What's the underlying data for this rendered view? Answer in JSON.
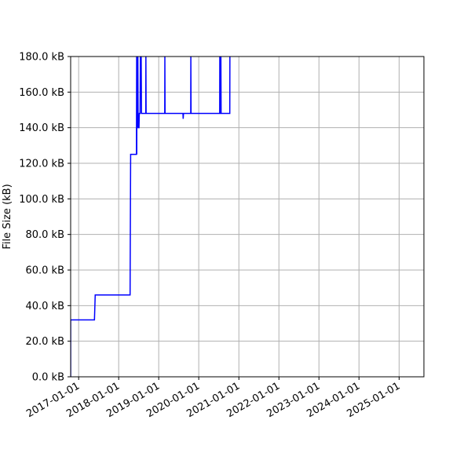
{
  "chart_data": {
    "type": "line",
    "title": "",
    "xlabel": "",
    "ylabel": "File Size (kB)",
    "grid": true,
    "legend": "none",
    "line_color": "#0000ff",
    "xlim": [
      "2016-10-20",
      "2025-08-15"
    ],
    "ylim": [
      0,
      180
    ],
    "x_ticks": [
      "2017-01-01",
      "2018-01-01",
      "2019-01-01",
      "2020-01-01",
      "2021-01-01",
      "2022-01-01",
      "2023-01-01",
      "2024-01-01",
      "2025-01-01"
    ],
    "y_ticks": [
      0,
      20,
      40,
      60,
      80,
      100,
      120,
      140,
      160,
      180
    ],
    "y_tick_labels": [
      "0.0 kB",
      "20.0 kB",
      "40.0 kB",
      "60.0 kB",
      "80.0 kB",
      "100.0 kB",
      "120.0 kB",
      "140.0 kB",
      "160.0 kB",
      "180.0 kB"
    ],
    "series": [
      {
        "x": [
          "2016-10-20",
          "2016-10-20",
          "2017-05-25",
          "2017-06-01",
          "2018-04-15",
          "2018-04-20",
          "2018-06-12",
          "2018-06-14",
          "2018-06-15",
          "2018-06-16",
          "2018-06-20",
          "2018-06-22",
          "2018-06-25",
          "2018-06-27",
          "2018-07-05",
          "2018-07-08",
          "2018-07-15",
          "2018-07-18",
          "2018-07-25",
          "2018-07-28",
          "2018-09-05",
          "2018-09-06",
          "2018-09-08",
          "2019-02-25",
          "2019-02-26",
          "2019-02-28",
          "2019-08-10",
          "2019-08-12",
          "2019-08-15",
          "2019-10-20",
          "2019-10-21",
          "2019-10-23",
          "2020-07-10",
          "2020-07-11",
          "2020-07-13",
          "2020-07-20",
          "2020-07-21",
          "2020-07-23",
          "2020-10-10",
          "2020-10-11"
        ],
        "y": [
          0,
          32,
          32,
          46,
          46,
          125,
          125,
          180,
          125,
          180,
          180,
          140,
          180,
          140,
          140,
          148,
          148,
          180,
          180,
          148,
          148,
          180,
          148,
          148,
          180,
          148,
          148,
          145,
          148,
          148,
          180,
          148,
          148,
          180,
          148,
          148,
          180,
          148,
          148,
          180
        ]
      }
    ]
  }
}
